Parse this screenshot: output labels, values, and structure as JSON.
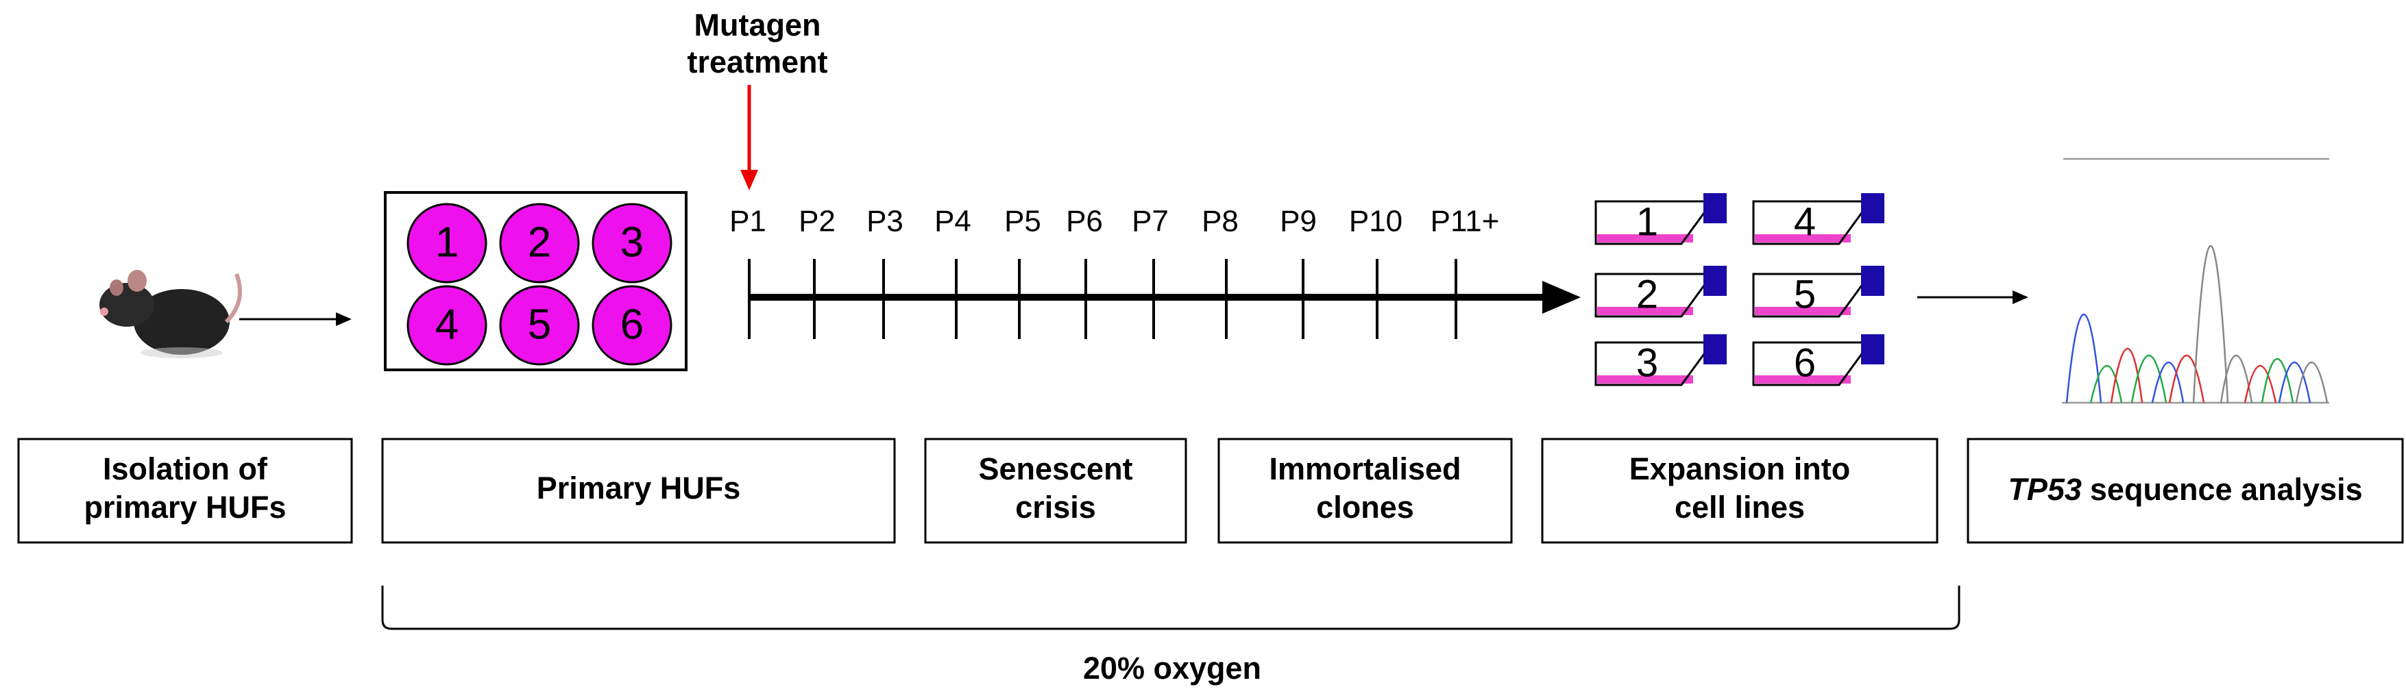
{
  "annotation": {
    "lines": [
      "Mutagen",
      "treatment"
    ]
  },
  "wells": [
    "1",
    "2",
    "3",
    "4",
    "5",
    "6"
  ],
  "passages": [
    "P1",
    "P2",
    "P3",
    "P4",
    "P5",
    "P6",
    "P7",
    "P8",
    "P9",
    "P10",
    "P11+"
  ],
  "flasks": [
    "1",
    "4",
    "2",
    "5",
    "3",
    "6"
  ],
  "stages": [
    {
      "lines": [
        "Isolation of",
        "primary HUFs"
      ]
    },
    {
      "lines": [
        "Primary HUFs"
      ]
    },
    {
      "lines": [
        "Senescent",
        "crisis"
      ]
    },
    {
      "lines": [
        "Immortalised",
        "clones"
      ]
    },
    {
      "lines": [
        "Expansion into",
        "cell lines"
      ]
    },
    {
      "italic": "TP53",
      "text": "sequence analysis"
    }
  ],
  "bracket": {
    "label": "20% oxygen"
  }
}
